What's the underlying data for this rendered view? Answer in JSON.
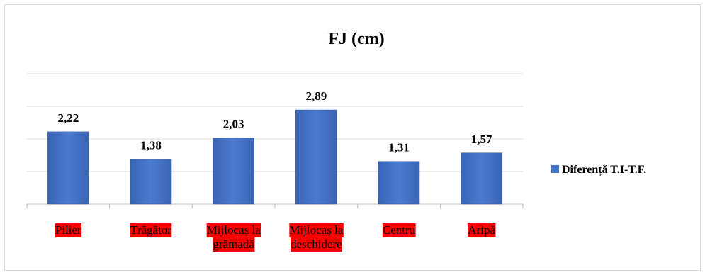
{
  "chart_data": {
    "type": "bar",
    "title": "FJ (cm)",
    "categories": [
      "Pilier",
      "Trăgător",
      "Mijlocaș la grămadă",
      "Mijlocaș la deschidere",
      "Centru",
      "Aripă"
    ],
    "category_lines": [
      [
        "Pilier"
      ],
      [
        "Trăgător"
      ],
      [
        "Mijlocaș la",
        "grămadă"
      ],
      [
        "Mijlocaș la",
        "deschidere"
      ],
      [
        "Centru"
      ],
      [
        "Aripă"
      ]
    ],
    "series": [
      {
        "name": "Diferență T.I-T.F.",
        "values": [
          2.22,
          1.38,
          2.03,
          2.89,
          1.31,
          1.57
        ],
        "labels": [
          "2,22",
          "1,38",
          "2,03",
          "2,89",
          "1,31",
          "1,57"
        ]
      }
    ],
    "ylim": [
      0,
      4
    ],
    "grid": true,
    "legend": "right",
    "colors": {
      "bar": "#4472c4",
      "bar_dark": "#2f5597",
      "category_highlight": "#ff0000",
      "grid": "#d9d9d9",
      "axis": "#bfbfbf"
    }
  }
}
